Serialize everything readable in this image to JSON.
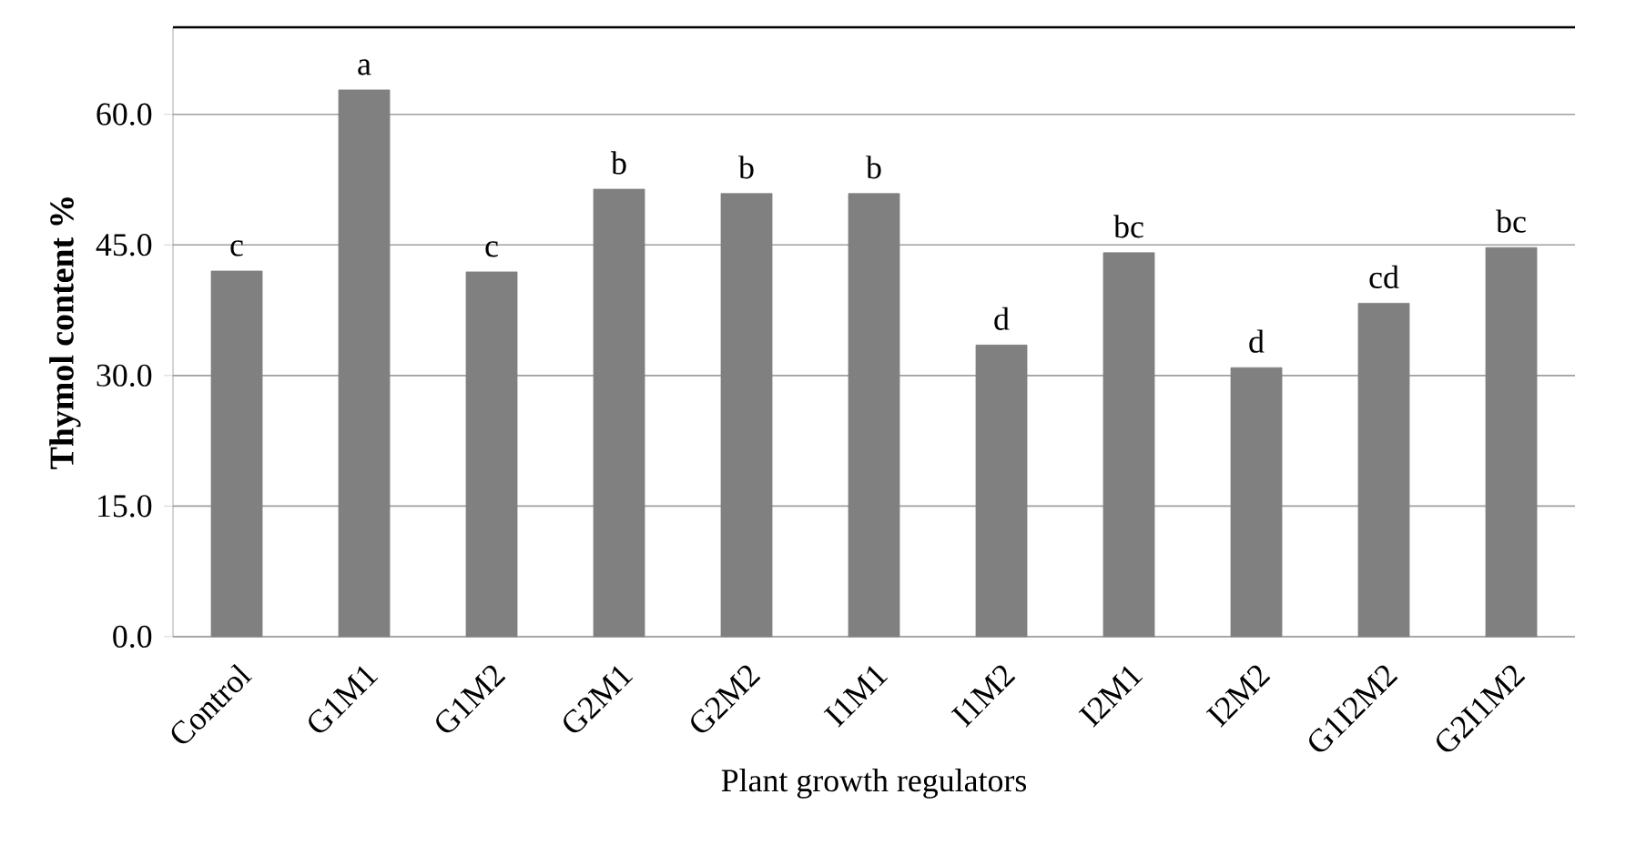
{
  "chart_data": {
    "type": "bar",
    "xlabel": "Plant growth regulators",
    "ylabel": "Thymol content %",
    "categories": [
      "Control",
      "G1M1",
      "G1M2",
      "G2M1",
      "G2M2",
      "I1M1",
      "I1M2",
      "I2M1",
      "I2M2",
      "G1I2M2",
      "G2I1M2"
    ],
    "values": [
      42.0,
      62.8,
      41.9,
      51.4,
      50.9,
      50.9,
      33.5,
      44.1,
      30.9,
      38.3,
      44.7
    ],
    "color": "#808080",
    "ylim": [
      0,
      70
    ],
    "yticks": [
      {
        "value": 0,
        "label": "0.0"
      },
      {
        "value": 15,
        "label": "15.0"
      },
      {
        "value": 30,
        "label": "30.0"
      },
      {
        "value": 45,
        "label": "45.0"
      },
      {
        "value": 60,
        "label": "60.0"
      }
    ],
    "grid": "y",
    "annotations": [
      {
        "text": "c",
        "x": "Control",
        "y": 42.0
      },
      {
        "text": "a",
        "x": "G1M1",
        "y": 62.8
      },
      {
        "text": "c",
        "x": "G1M2",
        "y": 41.9
      },
      {
        "text": "b",
        "x": "G2M1",
        "y": 51.4
      },
      {
        "text": "b",
        "x": "G2M2",
        "y": 50.9
      },
      {
        "text": "b",
        "x": "I1M1",
        "y": 50.9
      },
      {
        "text": "d",
        "x": "I1M2",
        "y": 33.5
      },
      {
        "text": "bc",
        "x": "I2M1",
        "y": 44.1
      },
      {
        "text": "d",
        "x": "I2M2",
        "y": 30.9
      },
      {
        "text": "cd",
        "x": "G1I2M2",
        "y": 38.3
      },
      {
        "text": "bc",
        "x": "G2I1M2",
        "y": 44.7
      }
    ]
  }
}
